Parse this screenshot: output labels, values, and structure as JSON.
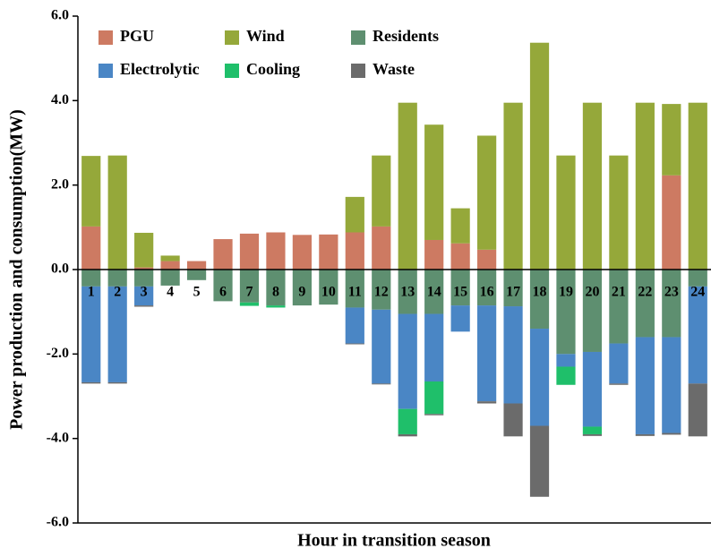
{
  "chart_data": {
    "type": "stacked-bar",
    "x_label": "Hour in transition season",
    "y_label": "Power production and consumption(MW)",
    "categories": [
      "1",
      "2",
      "3",
      "4",
      "5",
      "6",
      "7",
      "8",
      "9",
      "10",
      "11",
      "12",
      "13",
      "14",
      "15",
      "16",
      "17",
      "18",
      "19",
      "20",
      "21",
      "22",
      "23",
      "24"
    ],
    "series": [
      {
        "name": "PGU",
        "color": "#cd7a62",
        "values": [
          1.02,
          0,
          0.05,
          0.2,
          0.2,
          0.72,
          0.85,
          0.88,
          0.82,
          0.83,
          0.88,
          1.02,
          0,
          0.7,
          0.62,
          0.47,
          0,
          0,
          0,
          0,
          0,
          0,
          2.23,
          0
        ]
      },
      {
        "name": "Wind",
        "color": "#95a83a",
        "values": [
          1.67,
          2.7,
          0.82,
          0.13,
          0,
          0,
          0,
          0,
          0,
          0,
          0.84,
          1.68,
          3.95,
          2.73,
          0.83,
          2.7,
          3.95,
          5.37,
          2.7,
          3.95,
          2.7,
          3.95,
          1.69,
          3.95
        ]
      },
      {
        "name": "Residents",
        "color": "#5e8f70",
        "values": [
          -0.4,
          -0.4,
          -0.4,
          -0.38,
          -0.25,
          -0.75,
          -0.78,
          -0.85,
          -0.85,
          -0.83,
          -0.9,
          -0.95,
          -1.05,
          -1.05,
          -0.85,
          -0.85,
          -0.87,
          -1.4,
          -2.0,
          -1.95,
          -1.75,
          -1.6,
          -1.6,
          -0.4
        ]
      },
      {
        "name": "Electrolytic",
        "color": "#4a86c5",
        "values": [
          -2.27,
          -2.27,
          -0.45,
          0,
          0,
          0,
          0,
          0,
          0,
          0,
          -0.85,
          -1.75,
          -2.25,
          -1.6,
          -0.62,
          -2.27,
          -2.3,
          -2.3,
          -0.3,
          -1.77,
          -0.95,
          -2.3,
          -2.27,
          -2.3
        ]
      },
      {
        "name": "Cooling",
        "color": "#1fbf6a",
        "values": [
          0,
          0,
          0,
          0,
          0,
          0,
          -0.08,
          -0.05,
          0,
          0,
          0,
          0,
          -0.6,
          -0.77,
          0,
          0,
          0,
          0,
          -0.43,
          -0.18,
          0,
          0,
          0,
          0
        ]
      },
      {
        "name": "Waste",
        "color": "#6b6b6b",
        "values": [
          -0.03,
          -0.03,
          -0.03,
          0,
          0,
          0,
          0,
          0,
          0,
          0,
          -0.02,
          -0.02,
          -0.05,
          -0.03,
          0,
          -0.05,
          -0.78,
          -1.68,
          0,
          -0.04,
          -0.03,
          -0.04,
          -0.04,
          -1.25
        ]
      }
    ],
    "ylim": [
      -6,
      6
    ],
    "yticks": [
      {
        "value": -6,
        "label": "-6.0"
      },
      {
        "value": -4,
        "label": "-4.0"
      },
      {
        "value": -2,
        "label": "-2.0"
      },
      {
        "value": 0,
        "label": "0.0"
      },
      {
        "value": 2,
        "label": "2.0"
      },
      {
        "value": 4,
        "label": "4.0"
      },
      {
        "value": 6,
        "label": "6.0"
      }
    ]
  }
}
